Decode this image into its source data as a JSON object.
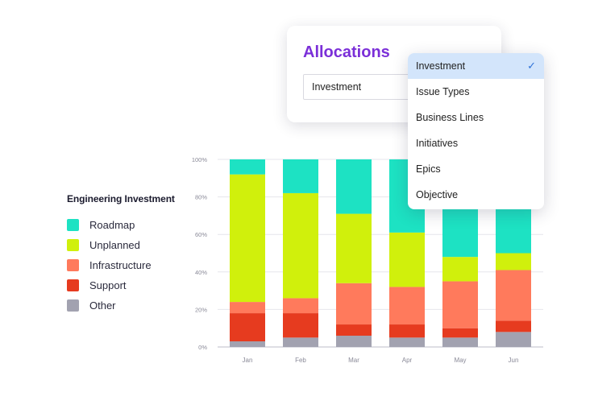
{
  "chart_data": {
    "type": "bar",
    "stacked": true,
    "categories": [
      "Jan",
      "Feb",
      "Mar",
      "Apr",
      "May",
      "Jun"
    ],
    "series": [
      {
        "name": "Other",
        "color": "#a2a2b0",
        "values": [
          3,
          5,
          6,
          5,
          5,
          8
        ]
      },
      {
        "name": "Support",
        "color": "#e63b1f",
        "values": [
          15,
          13,
          6,
          7,
          5,
          6
        ]
      },
      {
        "name": "Infrastructure",
        "color": "#ff7a5c",
        "values": [
          6,
          8,
          22,
          20,
          25,
          27
        ]
      },
      {
        "name": "Unplanned",
        "color": "#d0f00c",
        "values": [
          68,
          56,
          37,
          29,
          13,
          9
        ]
      },
      {
        "name": "Roadmap",
        "color": "#1de2c3",
        "values": [
          8,
          18,
          29,
          39,
          52,
          50
        ]
      }
    ],
    "y_ticks": [
      "0%",
      "20%",
      "40%",
      "60%",
      "80%",
      "100%"
    ],
    "ylim": [
      0,
      100
    ],
    "title": "",
    "xlabel": "",
    "ylabel": "",
    "grid": true
  },
  "legend": {
    "title": "Engineering Investment",
    "items": [
      {
        "label": "Roadmap",
        "color": "#1de2c3"
      },
      {
        "label": "Unplanned",
        "color": "#d0f00c"
      },
      {
        "label": "Infrastructure",
        "color": "#ff7a5c"
      },
      {
        "label": "Support",
        "color": "#e63b1f"
      },
      {
        "label": "Other",
        "color": "#a2a2b0"
      }
    ]
  },
  "allocations": {
    "title": "Allocations",
    "selected_value": "Investment"
  },
  "dropdown": {
    "selected_index": 0,
    "options": [
      "Investment",
      "Issue Types",
      "Business Lines",
      "Initiatives",
      "Epics",
      "Objective"
    ]
  }
}
